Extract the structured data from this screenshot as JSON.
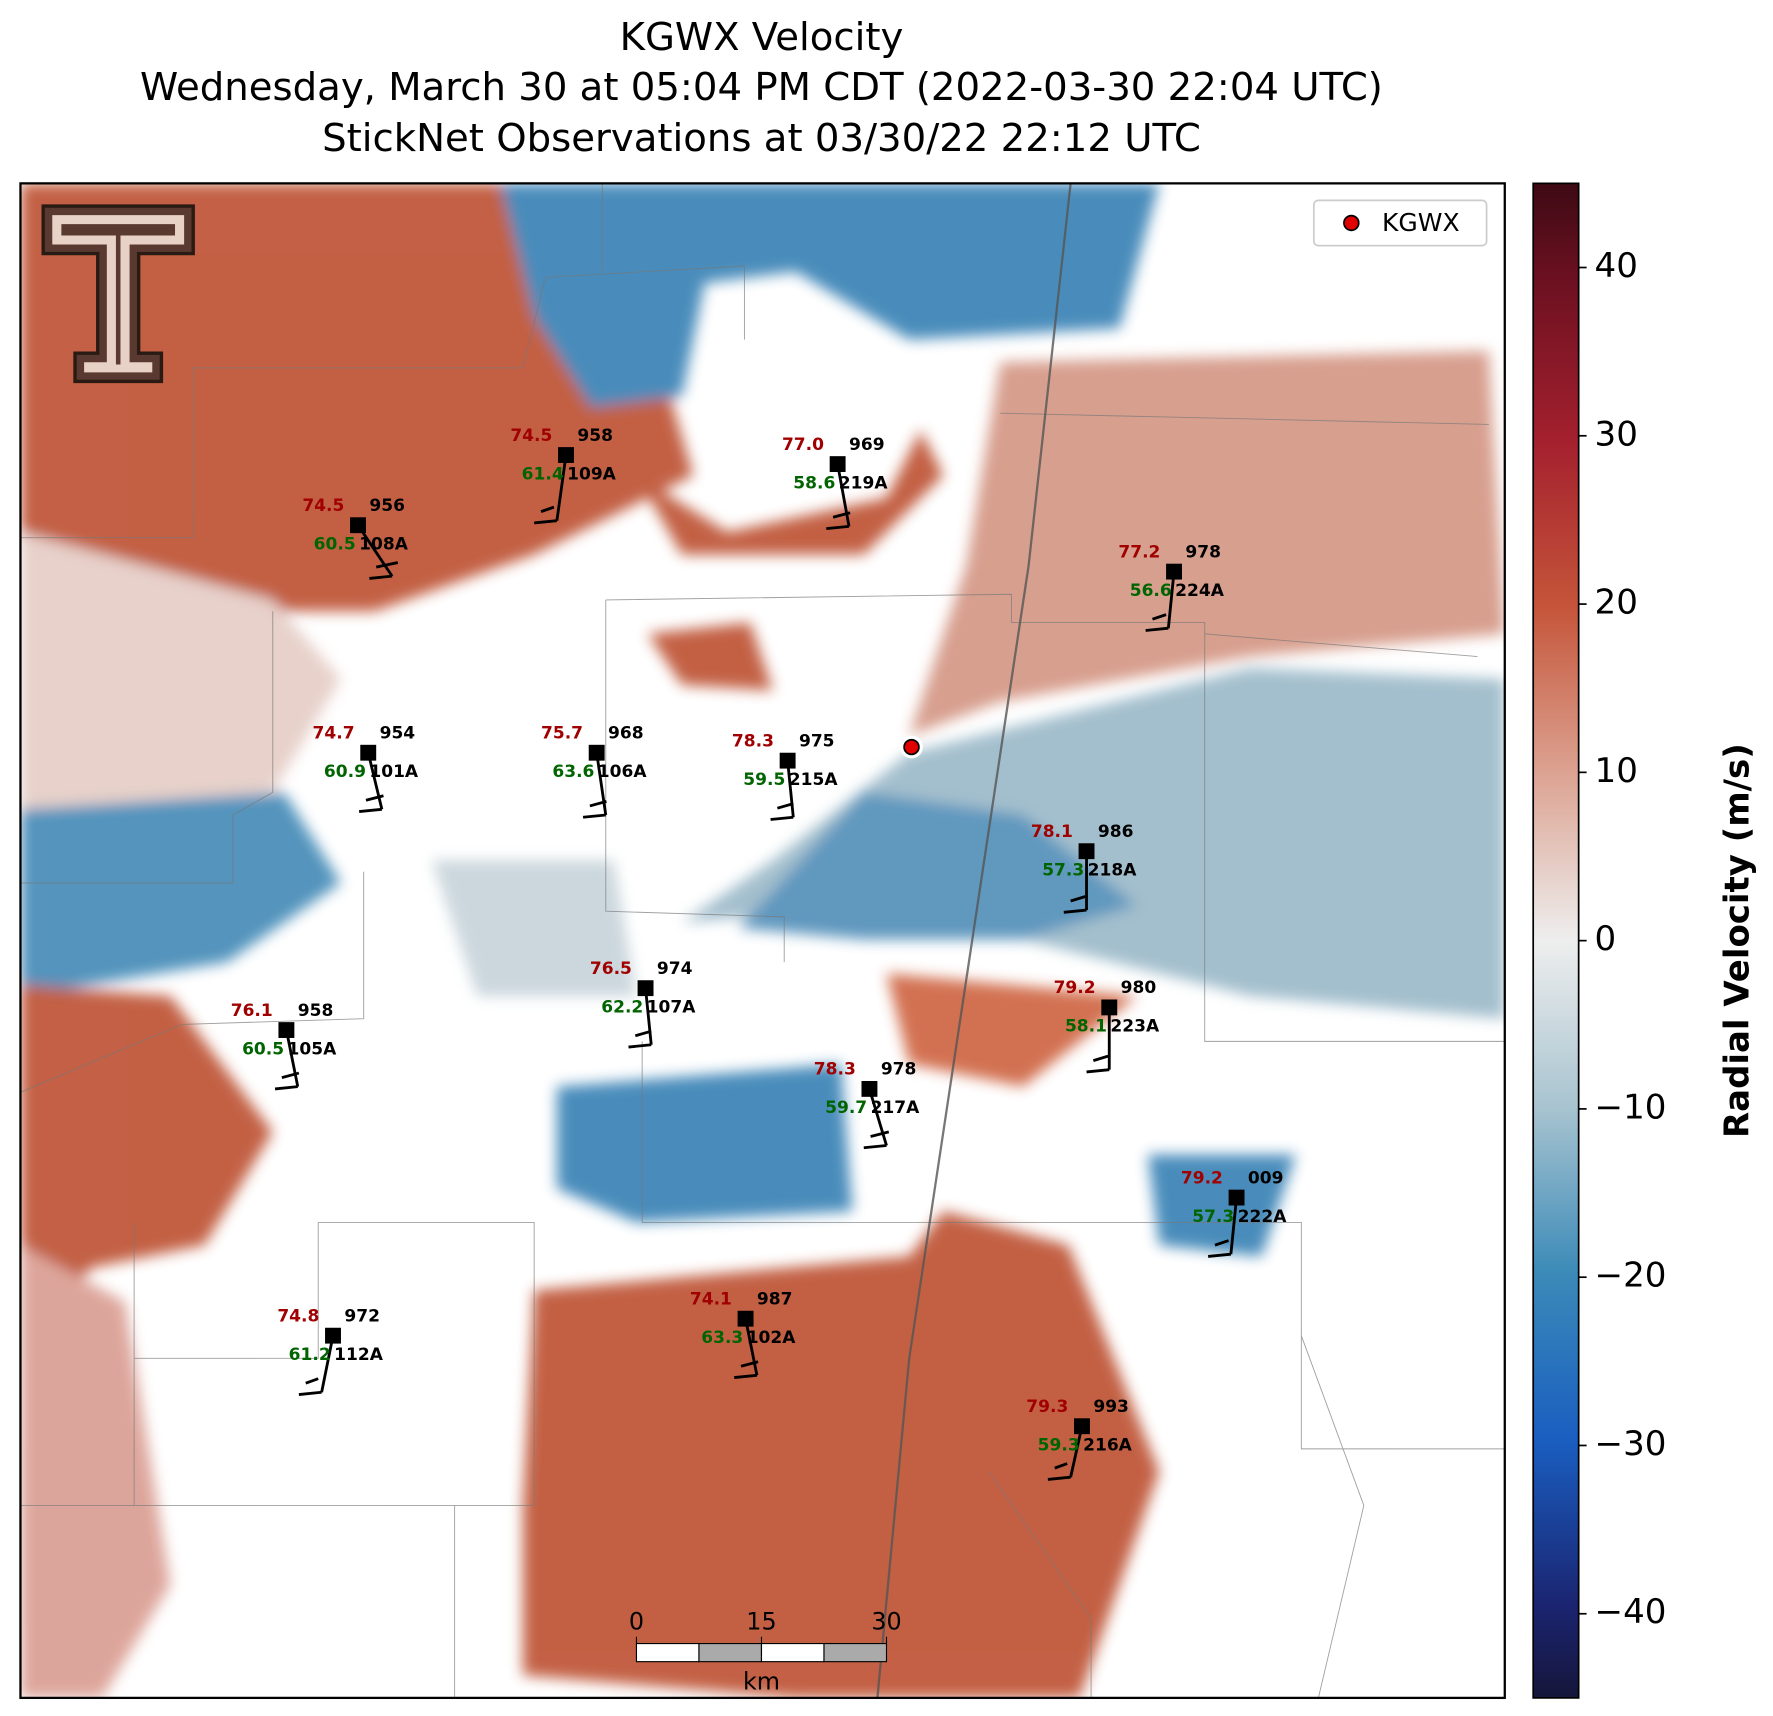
{
  "title": [
    "KGWX Velocity",
    "Wednesday, March 30 at 05:04 PM CDT (2022-03-30 22:04 UTC)",
    "StickNet Observations at 03/30/22 22:12 UTC"
  ],
  "legend": {
    "label": "KGWX"
  },
  "colorbar": {
    "label": "Radial Velocity (m/s)",
    "lim": [
      -45,
      45
    ],
    "ticks": [
      {
        "value": -40,
        "label": "−40"
      },
      {
        "value": -30,
        "label": "−30"
      },
      {
        "value": -20,
        "label": "−20"
      },
      {
        "value": -10,
        "label": "−10"
      },
      0,
      10,
      20,
      30,
      40
    ]
  },
  "scale_bar": {
    "ticks": [
      0,
      15,
      30
    ],
    "unit": "km"
  },
  "stations": [
    {
      "temperature": "74.5",
      "dewpoint": "61.4",
      "pressure": "958",
      "id": "109A"
    },
    {
      "temperature": "74.5",
      "dewpoint": "60.5",
      "pressure": "956",
      "id": "108A"
    },
    {
      "temperature": "77.0",
      "dewpoint": "58.6",
      "pressure": "969",
      "id": "219A"
    },
    {
      "temperature": "77.2",
      "dewpoint": "56.6",
      "pressure": "978",
      "id": "224A"
    },
    {
      "temperature": "74.7",
      "dewpoint": "60.9",
      "pressure": "954",
      "id": "101A"
    },
    {
      "temperature": "75.7",
      "dewpoint": "63.6",
      "pressure": "968",
      "id": "106A"
    },
    {
      "temperature": "78.3",
      "dewpoint": "59.5",
      "pressure": "975",
      "id": "215A"
    },
    {
      "temperature": "78.1",
      "dewpoint": "57.3",
      "pressure": "986",
      "id": "218A"
    },
    {
      "temperature": "76.5",
      "dewpoint": "62.2",
      "pressure": "974",
      "id": "107A"
    },
    {
      "temperature": "79.2",
      "dewpoint": "58.1",
      "pressure": "980",
      "id": "223A"
    },
    {
      "temperature": "76.1",
      "dewpoint": "60.5",
      "pressure": "958",
      "id": "105A"
    },
    {
      "temperature": "78.3",
      "dewpoint": "59.7",
      "pressure": "978",
      "id": "217A"
    },
    {
      "temperature": "79.2",
      "dewpoint": "57.3",
      "pressure": "009",
      "id": "222A"
    },
    {
      "temperature": "74.1",
      "dewpoint": "63.3",
      "pressure": "987",
      "id": "102A"
    },
    {
      "temperature": "74.8",
      "dewpoint": "61.2",
      "pressure": "972",
      "id": "112A"
    },
    {
      "temperature": "79.3",
      "dewpoint": "59.3",
      "pressure": "993",
      "id": "216A"
    }
  ]
}
